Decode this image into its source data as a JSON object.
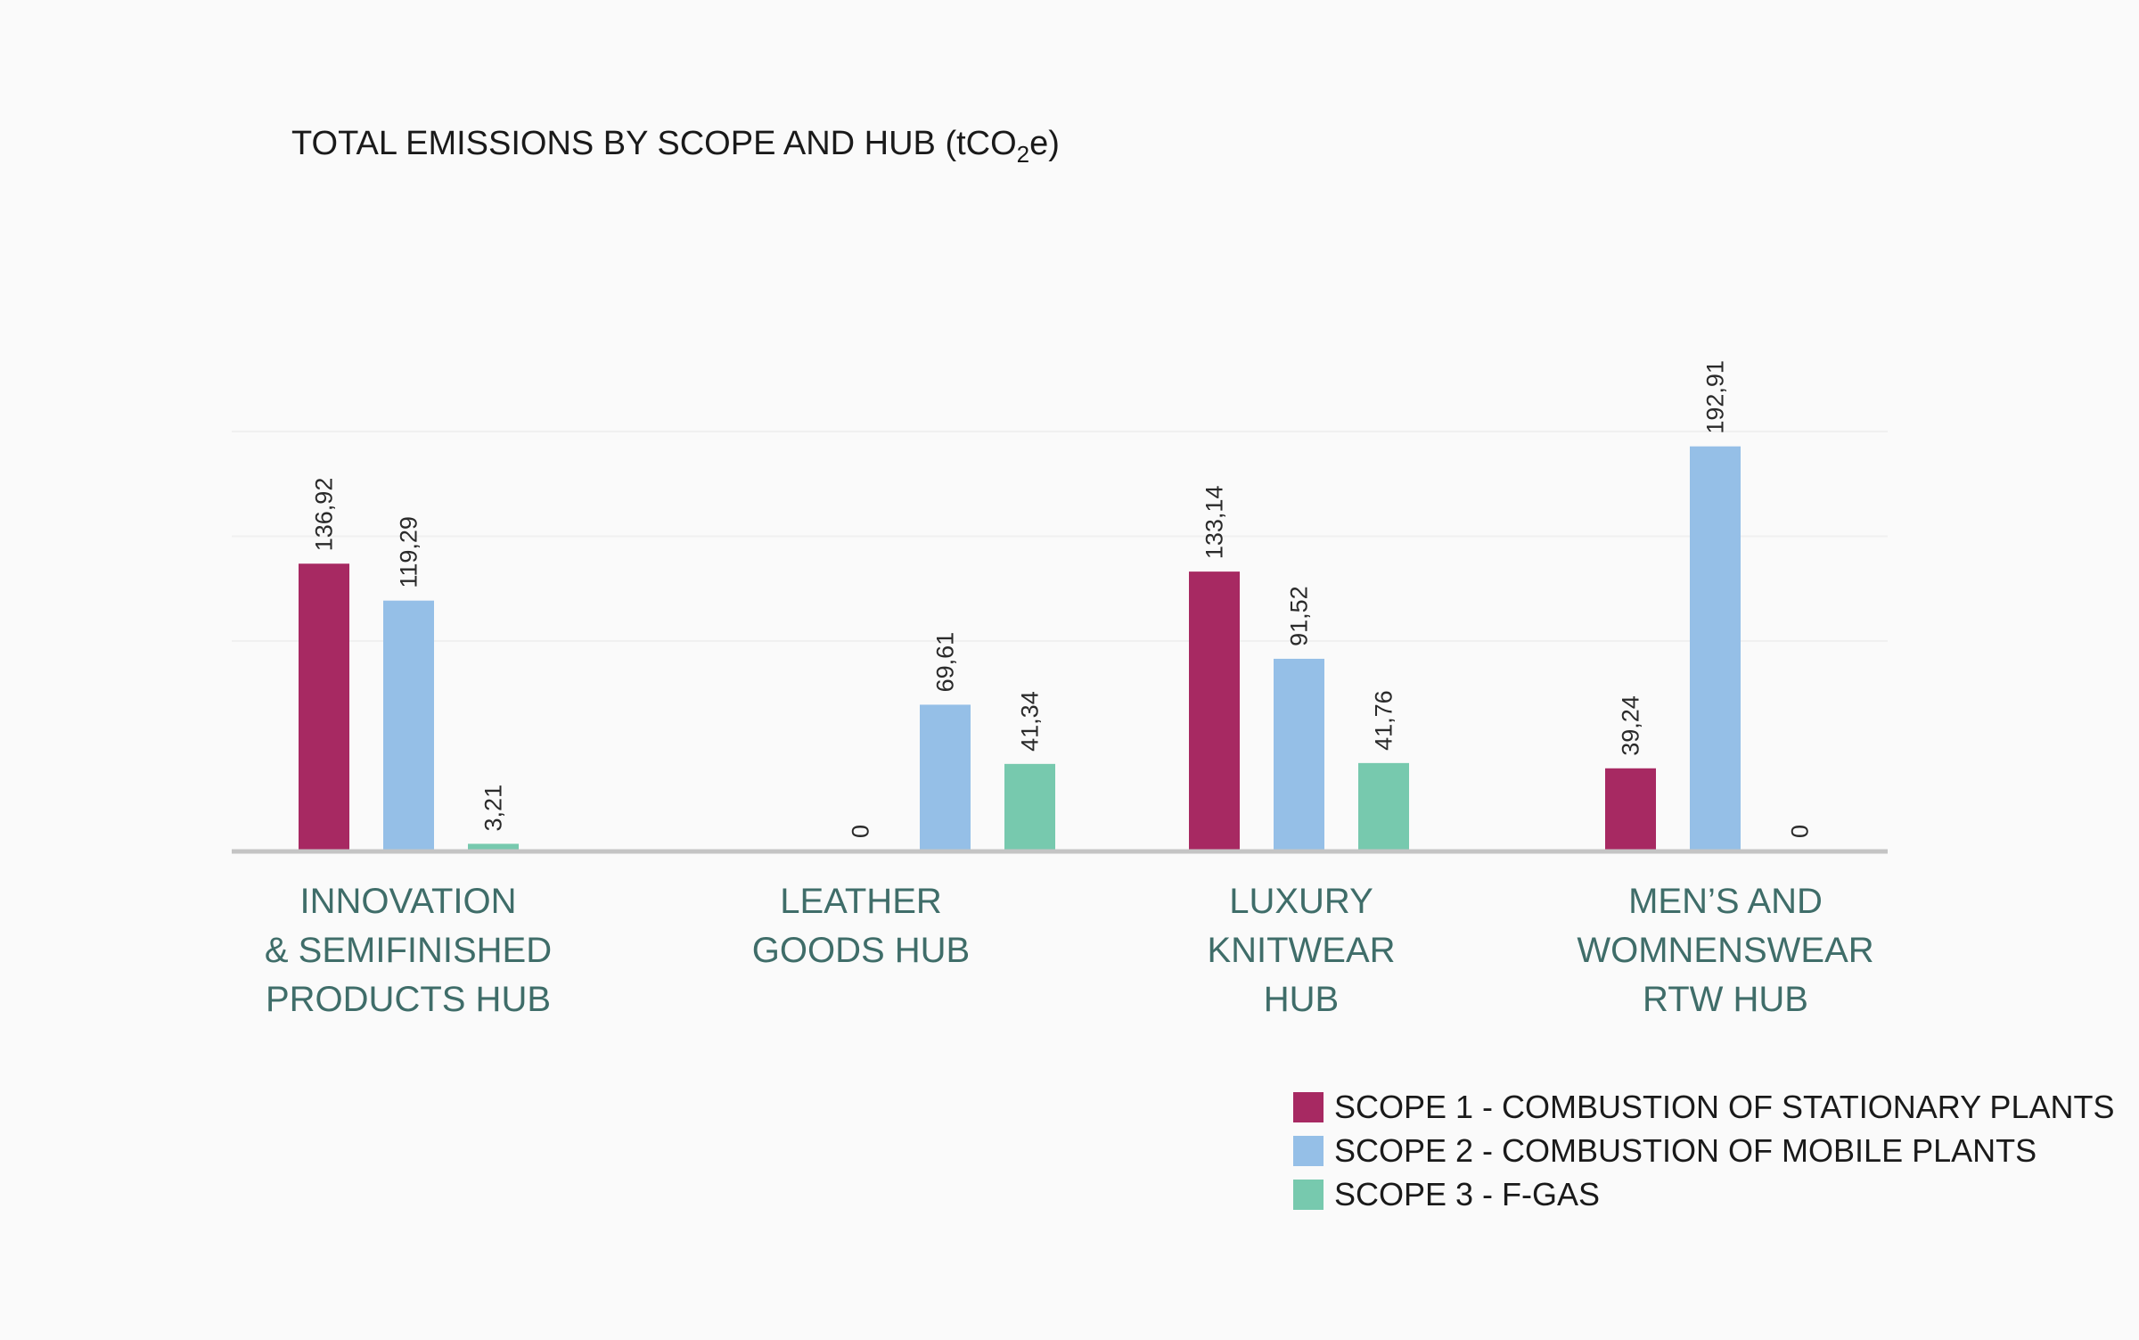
{
  "chart_data": {
    "type": "bar",
    "title_main": "TOTAL EMISSIONS BY SCOPE AND HUB (tCO",
    "title_sub": "2",
    "title_end": "e)",
    "categories": [
      [
        "INNOVATION",
        "& SEMIFINISHED",
        "PRODUCTS HUB"
      ],
      [
        "LEATHER",
        "GOODS HUB"
      ],
      [
        "LUXURY",
        "KNITWEAR",
        "HUB"
      ],
      [
        "MEN’S AND",
        "WOMNENSWEAR",
        "RTW HUB"
      ]
    ],
    "series": [
      {
        "name": "SCOPE 1 - COMBUSTION OF STATIONARY PLANTS",
        "color": "#a72962",
        "values": [
          136.92,
          0,
          133.14,
          39.24
        ],
        "labels": [
          "136,92",
          "0",
          "133,14",
          "39,24"
        ]
      },
      {
        "name": "SCOPE 2 - COMBUSTION OF MOBILE PLANTS",
        "color": "#95bfe7",
        "values": [
          119.29,
          69.61,
          91.52,
          192.91
        ],
        "labels": [
          "119,29",
          "69,61",
          "91,52",
          "192,91"
        ]
      },
      {
        "name": "SCOPE 3 - F-GAS",
        "color": "#77c9ae",
        "values": [
          3.21,
          41.34,
          41.76,
          0
        ],
        "labels": [
          "3,21",
          "41,34",
          "41,76",
          "0"
        ]
      }
    ],
    "ylim": [
      0,
      200
    ],
    "gridlines": [
      100,
      150,
      200
    ],
    "legend_position": "bottom-right",
    "colors": {
      "axis": "#c4c4c4",
      "grid": "#f0f0f0",
      "category_text": "#3f6d69"
    }
  }
}
